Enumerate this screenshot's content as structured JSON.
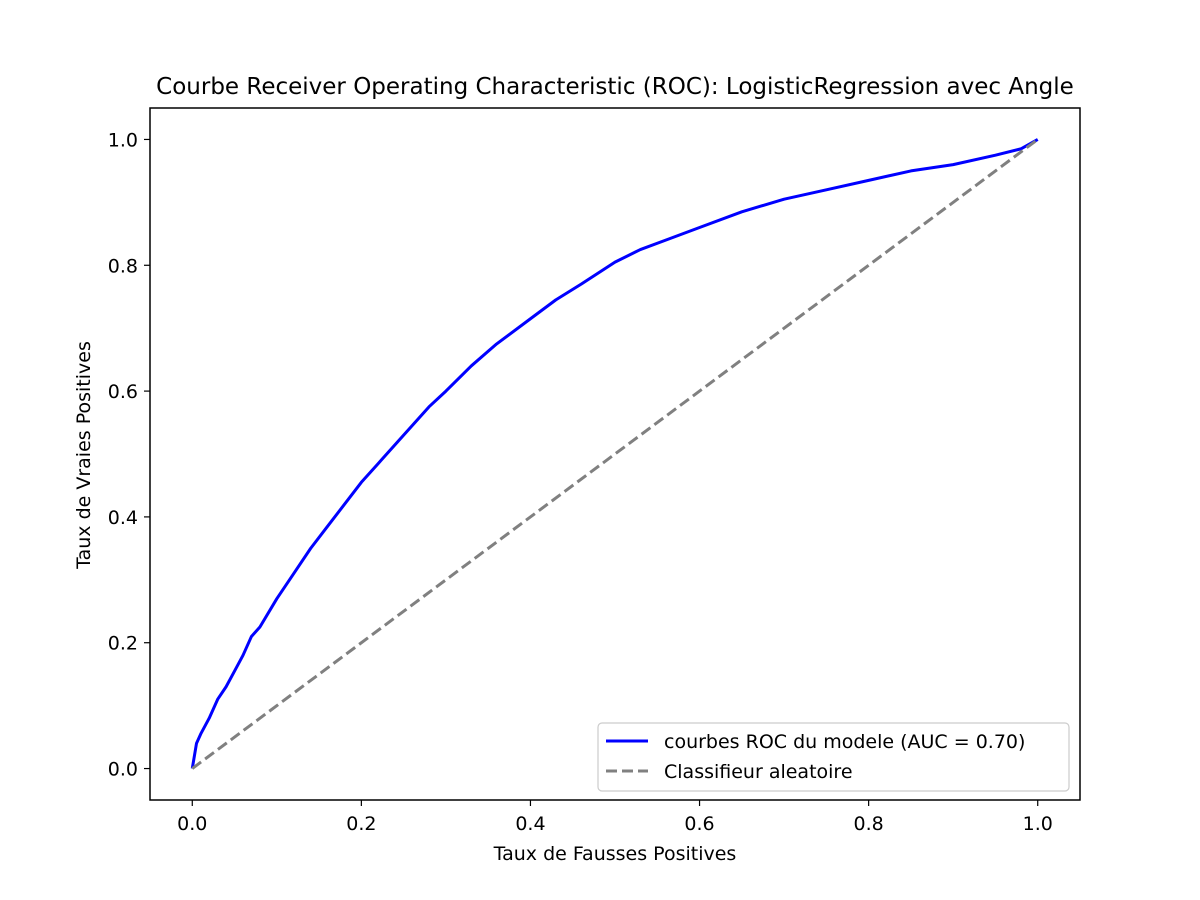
{
  "chart_data": {
    "type": "line",
    "title": "Courbe Receiver Operating Characteristic (ROC): LogisticRegression avec Angle",
    "xlabel": "Taux de Fausses Positives",
    "ylabel": "Taux de Vraies Positives",
    "xlim": [
      -0.05,
      1.05
    ],
    "ylim": [
      -0.05,
      1.05
    ],
    "xticks": [
      0.0,
      0.2,
      0.4,
      0.6,
      0.8,
      1.0
    ],
    "yticks": [
      0.0,
      0.2,
      0.4,
      0.6,
      0.8,
      1.0
    ],
    "xtick_labels": [
      "0.0",
      "0.2",
      "0.4",
      "0.6",
      "0.8",
      "1.0"
    ],
    "ytick_labels": [
      "0.0",
      "0.2",
      "0.4",
      "0.6",
      "0.8",
      "1.0"
    ],
    "grid": false,
    "legend_position": "lower-right",
    "series": [
      {
        "name": "courbes ROC du modele (AUC = 0.70)",
        "color": "#0000ff",
        "style": "solid",
        "x": [
          0.0,
          0.005,
          0.01,
          0.02,
          0.03,
          0.04,
          0.05,
          0.06,
          0.07,
          0.08,
          0.1,
          0.12,
          0.14,
          0.16,
          0.18,
          0.2,
          0.22,
          0.25,
          0.28,
          0.3,
          0.33,
          0.36,
          0.4,
          0.43,
          0.46,
          0.5,
          0.53,
          0.56,
          0.6,
          0.65,
          0.7,
          0.75,
          0.8,
          0.85,
          0.9,
          0.95,
          0.98,
          1.0
        ],
        "y": [
          0.0,
          0.04,
          0.055,
          0.08,
          0.11,
          0.13,
          0.155,
          0.18,
          0.21,
          0.225,
          0.27,
          0.31,
          0.35,
          0.385,
          0.42,
          0.455,
          0.485,
          0.53,
          0.575,
          0.6,
          0.64,
          0.675,
          0.715,
          0.745,
          0.77,
          0.805,
          0.825,
          0.84,
          0.86,
          0.885,
          0.905,
          0.92,
          0.935,
          0.95,
          0.96,
          0.975,
          0.985,
          1.0
        ]
      },
      {
        "name": "Classifieur aleatoire",
        "color": "#808080",
        "style": "dashed",
        "x": [
          0.0,
          1.0
        ],
        "y": [
          0.0,
          1.0
        ]
      }
    ]
  }
}
